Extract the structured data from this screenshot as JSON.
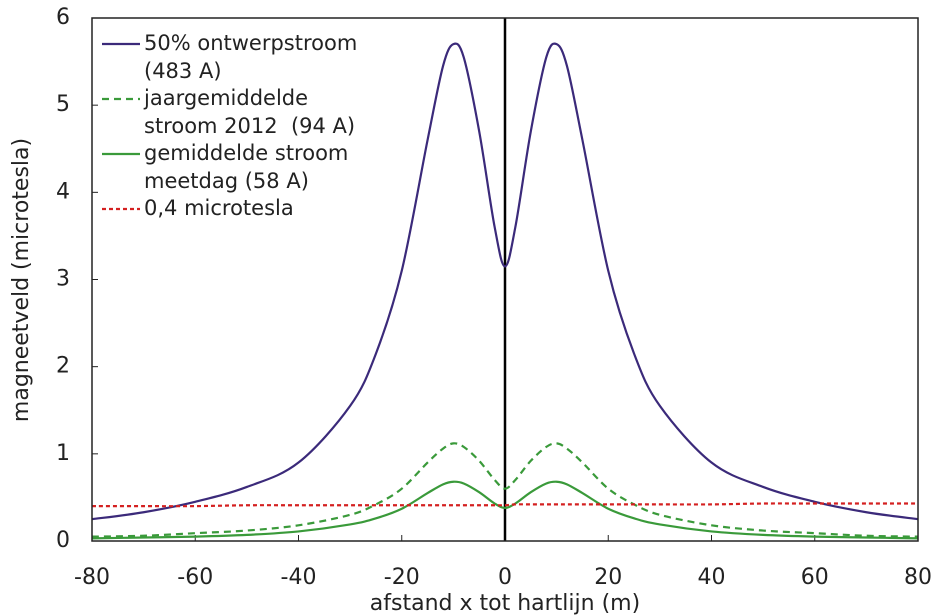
{
  "chart_data": {
    "type": "line",
    "x_label": "afstand x tot hartlijn (m)",
    "y_label": "magneetveld (microtesla)",
    "x": [
      -80,
      -70,
      -60,
      -50,
      -40,
      -30,
      -25,
      -20,
      -15,
      -12,
      -10,
      -8,
      -5,
      -2,
      0,
      2,
      5,
      8,
      10,
      12,
      15,
      20,
      25,
      30,
      40,
      50,
      60,
      70,
      80
    ],
    "series": [
      {
        "name": "50% ontwerpstroom\n(483 A)",
        "color": "#3b2a7a",
        "dash": "solid",
        "values": [
          0.25,
          0.33,
          0.45,
          0.62,
          0.9,
          1.55,
          2.15,
          3.1,
          4.6,
          5.45,
          5.7,
          5.55,
          4.7,
          3.6,
          3.15,
          3.6,
          4.7,
          5.55,
          5.7,
          5.45,
          4.6,
          3.1,
          2.15,
          1.55,
          0.9,
          0.62,
          0.45,
          0.33,
          0.25
        ]
      },
      {
        "name": "jaargemiddelde\nstroom 2012  (94 A)",
        "color": "#3a9a3a",
        "dash": "dashed",
        "values": [
          0.05,
          0.06,
          0.09,
          0.12,
          0.18,
          0.3,
          0.42,
          0.6,
          0.9,
          1.06,
          1.12,
          1.08,
          0.92,
          0.7,
          0.6,
          0.7,
          0.92,
          1.08,
          1.12,
          1.06,
          0.9,
          0.6,
          0.42,
          0.3,
          0.18,
          0.12,
          0.09,
          0.06,
          0.05
        ]
      },
      {
        "name": "gemiddelde stroom\nmeetdag (58 A)",
        "color": "#3a9a3a",
        "dash": "solid",
        "values": [
          0.03,
          0.04,
          0.05,
          0.07,
          0.11,
          0.19,
          0.26,
          0.37,
          0.55,
          0.65,
          0.68,
          0.66,
          0.56,
          0.43,
          0.38,
          0.43,
          0.56,
          0.66,
          0.68,
          0.65,
          0.55,
          0.37,
          0.26,
          0.19,
          0.11,
          0.07,
          0.05,
          0.04,
          0.03
        ]
      },
      {
        "name": "0,4 microtesla",
        "color": "#d42020",
        "dash": "dotted",
        "values": [
          0.4,
          0.4,
          0.4,
          0.41,
          0.41,
          0.41,
          0.41,
          0.41,
          0.41,
          0.41,
          0.41,
          0.41,
          0.41,
          0.41,
          0.41,
          0.42,
          0.42,
          0.42,
          0.42,
          0.42,
          0.42,
          0.42,
          0.42,
          0.42,
          0.42,
          0.43,
          0.43,
          0.43,
          0.43
        ]
      }
    ],
    "xlim": [
      -80,
      80
    ],
    "ylim": [
      0,
      6
    ],
    "xticks": [
      -80,
      -60,
      -40,
      -20,
      0,
      20,
      40,
      60,
      80
    ],
    "yticks": [
      0,
      1,
      2,
      3,
      4,
      5,
      6
    ],
    "legend": "upper left"
  }
}
